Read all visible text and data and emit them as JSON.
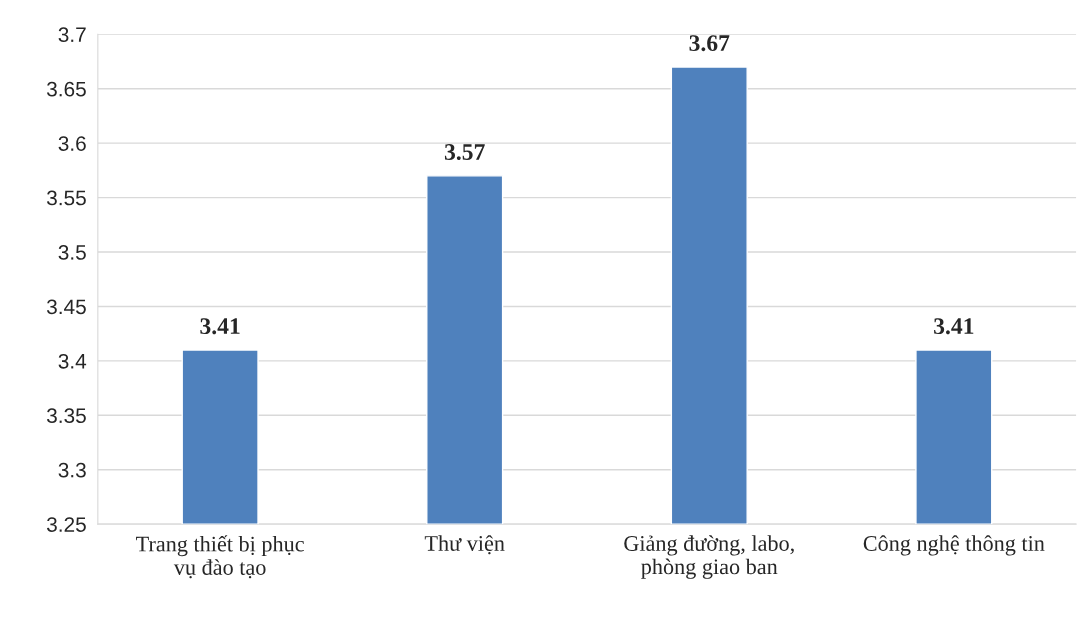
{
  "chart_data": {
    "type": "bar",
    "categories": [
      "Trang thiết bị phục\nvụ đào tạo",
      "Thư viện",
      "Giảng đường, labo,\nphòng giao ban",
      "Công nghệ thông tin"
    ],
    "values": [
      3.41,
      3.57,
      3.67,
      3.41
    ],
    "color": "#4f81bd",
    "ylim": [
      3.25,
      3.7
    ],
    "yticks": [
      3.25,
      3.3,
      3.35,
      3.4,
      3.45,
      3.5,
      3.55,
      3.6,
      3.65,
      3.7
    ],
    "grid": "y",
    "data_labels": true,
    "legend": false
  }
}
